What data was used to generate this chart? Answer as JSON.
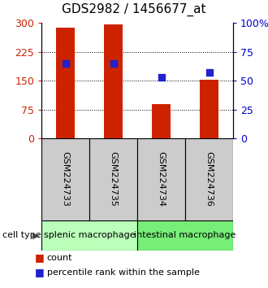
{
  "title": "GDS2982 / 1456677_at",
  "samples": [
    "GSM224733",
    "GSM224735",
    "GSM224734",
    "GSM224736"
  ],
  "counts": [
    287,
    297,
    88,
    152
  ],
  "percentiles": [
    65,
    65,
    53,
    57
  ],
  "ylim_left": [
    0,
    300
  ],
  "ylim_right": [
    0,
    100
  ],
  "yticks_left": [
    0,
    75,
    150,
    225,
    300
  ],
  "yticks_right": [
    0,
    25,
    50,
    75,
    100
  ],
  "ytick_labels_right": [
    "0",
    "25",
    "50",
    "75",
    "100%"
  ],
  "bar_color": "#cc2200",
  "dot_color": "#2222cc",
  "bar_width": 0.4,
  "cell_types": [
    {
      "label": "splenic macrophage",
      "indices": [
        0,
        1
      ],
      "color": "#bbffbb"
    },
    {
      "label": "intestinal macrophage",
      "indices": [
        2,
        3
      ],
      "color": "#77ee77"
    }
  ],
  "sample_box_color": "#cccccc",
  "cell_type_label": "cell type",
  "legend_count": "count",
  "legend_percentile": "percentile rank within the sample",
  "title_fontsize": 11,
  "tick_fontsize": 9,
  "sample_label_fontsize": 8,
  "cell_type_fontsize": 8
}
